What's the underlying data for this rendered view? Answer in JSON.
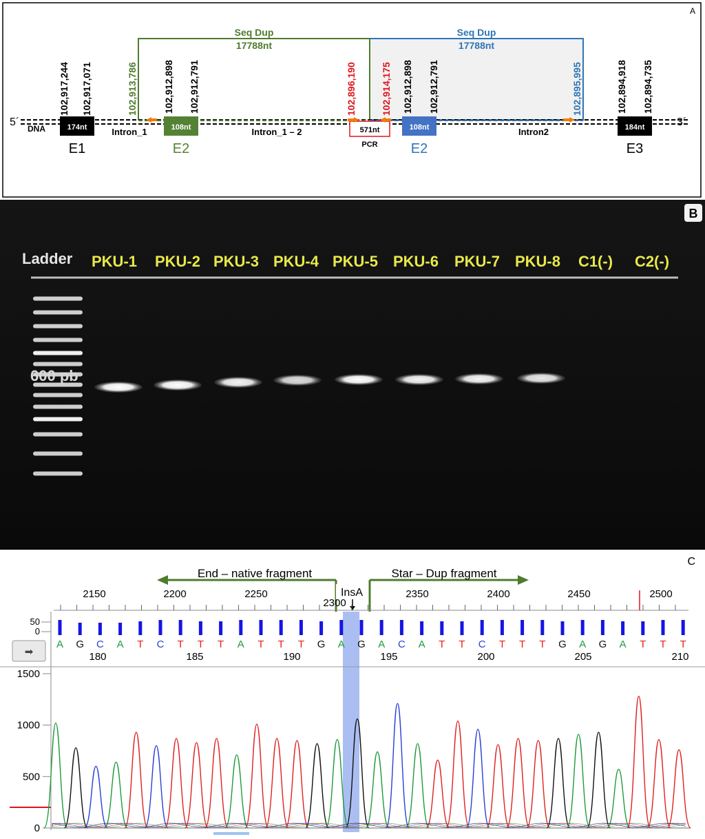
{
  "panelA": {
    "letter": "A",
    "five_prime": "5´",
    "three_prime": "3´",
    "dna_label": "DNA",
    "exons": {
      "e1": {
        "size": "174nt",
        "name": "E1"
      },
      "e2_native": {
        "size": "108nt",
        "name": "E2"
      },
      "e2_dup": {
        "size": "108nt",
        "name": "E2"
      },
      "e3": {
        "size": "184nt",
        "name": "E3"
      }
    },
    "introns": {
      "i1": "Intron_1",
      "i12": "Intron_1 – 2",
      "i2": "Intron2"
    },
    "pcr": {
      "size": "571nt",
      "label": "PCR"
    },
    "seqdup_green": {
      "title": "Seq Dup",
      "size": "17788nt"
    },
    "seqdup_blue": {
      "title": "Seq Dup",
      "size": "17788nt"
    },
    "coords": {
      "c1": "102,917,244",
      "c2": "102,917,071",
      "c3": "102,913,786",
      "c4": "102,912,898",
      "c5": "102,912,791",
      "c6": "102,896,190",
      "c7": "102,914,175",
      "c8": "102,912,898",
      "c9": "102,912,791",
      "c10": "102,895,995",
      "c11": "102,894,918",
      "c12": "102,894,735"
    },
    "colors": {
      "green": "#4e7b2c",
      "blue": "#2e75b6",
      "red": "#e0141e",
      "orange": "#f07d00"
    }
  },
  "panelB": {
    "letter": "B",
    "ladder": "Ladder",
    "lanes": [
      "PKU-1",
      "PKU-2",
      "PKU-3",
      "PKU-4",
      "PKU-5",
      "PKU-6",
      "PKU-7",
      "PKU-8",
      "C1(-)",
      "C2(-)"
    ],
    "marker": "600 pb",
    "lane_color": "#e8e84a"
  },
  "panelC": {
    "letter": "C",
    "left_arrow": "End – native fragment",
    "right_arrow": "Star – Dup fragment",
    "ins_label": "InsA",
    "axis_top": [
      "2150",
      "2200",
      "2250",
      "2300",
      "2350",
      "2400",
      "2450",
      "2500"
    ],
    "quality_ticks": [
      "50",
      "0"
    ],
    "bases": [
      "A",
      "G",
      "C",
      "A",
      "T",
      "C",
      "T",
      "T",
      "T",
      "A",
      "T",
      "T",
      "T",
      "G",
      "A",
      "G",
      "A",
      "C",
      "A",
      "T",
      "T",
      "C",
      "T",
      "T",
      "T",
      "G",
      "A",
      "G",
      "A",
      "T",
      "T",
      "T"
    ],
    "base_positions": [
      "180",
      "185",
      "190",
      "195",
      "200",
      "205",
      "210"
    ],
    "y_ticks": [
      "1500",
      "1000",
      "500",
      "0"
    ],
    "nav_button": "➡",
    "base_colors": {
      "A": "#1f9a3a",
      "C": "#2a3fd6",
      "G": "#111111",
      "T": "#e02020"
    }
  }
}
